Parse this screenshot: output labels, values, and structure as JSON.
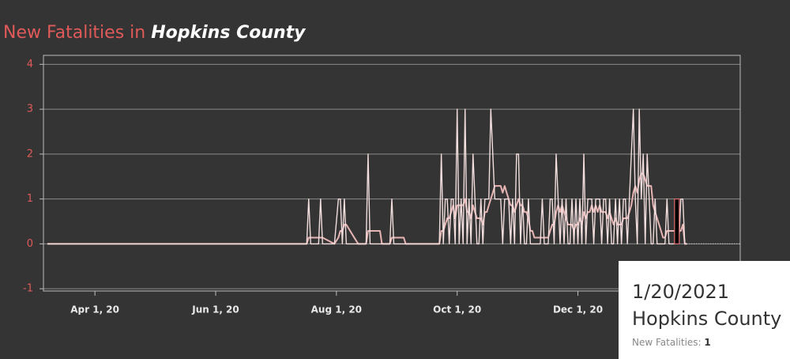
{
  "chart_data": {
    "type": "line",
    "title_parts": [
      "New Fatalities in ",
      "Hopkins County"
    ],
    "x": [
      "2020-03-08",
      "2020-07-17",
      "2020-07-18",
      "2020-07-19",
      "2020-07-23",
      "2020-07-24",
      "2020-07-25",
      "2020-07-31",
      "2020-08-02",
      "2020-08-03",
      "2020-08-04",
      "2020-08-05",
      "2020-08-06",
      "2020-08-10",
      "2020-08-12",
      "2020-08-16",
      "2020-08-17",
      "2020-08-18",
      "2020-08-23",
      "2020-08-24",
      "2020-08-28",
      "2020-08-29",
      "2020-08-30",
      "2020-09-04",
      "2020-09-05",
      "2020-09-22",
      "2020-09-23",
      "2020-09-24",
      "2020-09-25",
      "2020-09-26",
      "2020-09-27",
      "2020-09-28",
      "2020-09-29",
      "2020-09-30",
      "2020-10-01",
      "2020-10-02",
      "2020-10-03",
      "2020-10-04",
      "2020-10-05",
      "2020-10-06",
      "2020-10-07",
      "2020-10-08",
      "2020-10-09",
      "2020-10-10",
      "2020-10-11",
      "2020-10-12",
      "2020-10-13",
      "2020-10-14",
      "2020-10-15",
      "2020-10-16",
      "2020-10-17",
      "2020-10-18",
      "2020-10-19",
      "2020-10-20",
      "2020-10-21",
      "2020-10-22",
      "2020-10-23",
      "2020-10-24",
      "2020-10-25",
      "2020-10-26",
      "2020-10-27",
      "2020-10-28",
      "2020-10-29",
      "2020-10-30",
      "2020-10-31",
      "2020-11-01",
      "2020-11-02",
      "2020-11-03",
      "2020-11-04",
      "2020-11-05",
      "2020-11-06",
      "2020-11-07",
      "2020-11-08",
      "2020-11-09",
      "2020-11-10",
      "2020-11-11",
      "2020-11-12",
      "2020-11-13",
      "2020-11-14",
      "2020-11-15",
      "2020-11-16",
      "2020-11-17",
      "2020-11-18",
      "2020-11-19",
      "2020-11-20",
      "2020-11-21",
      "2020-11-22",
      "2020-11-23",
      "2020-11-24",
      "2020-11-25",
      "2020-11-26",
      "2020-11-27",
      "2020-11-28",
      "2020-11-29",
      "2020-11-30",
      "2020-12-01",
      "2020-12-02",
      "2020-12-03",
      "2020-12-04",
      "2020-12-05",
      "2020-12-06",
      "2020-12-07",
      "2020-12-08",
      "2020-12-09",
      "2020-12-10",
      "2020-12-11",
      "2020-12-12",
      "2020-12-13",
      "2020-12-14",
      "2020-12-15",
      "2020-12-16",
      "2020-12-17",
      "2020-12-18",
      "2020-12-19",
      "2020-12-20",
      "2020-12-21",
      "2020-12-22",
      "2020-12-23",
      "2020-12-24",
      "2020-12-25",
      "2020-12-26",
      "2020-12-27",
      "2020-12-28",
      "2020-12-29",
      "2020-12-30",
      "2020-12-31",
      "2021-01-01",
      "2021-01-02",
      "2021-01-03",
      "2021-01-04",
      "2021-01-05",
      "2021-01-06",
      "2021-01-07",
      "2021-01-08",
      "2021-01-09",
      "2021-01-10",
      "2021-01-11",
      "2021-01-12",
      "2021-01-13",
      "2021-01-14",
      "2021-01-15",
      "2021-01-16",
      "2021-01-17",
      "2021-01-18",
      "2021-01-19",
      "2021-01-20",
      "2021-01-21",
      "2021-01-22",
      "2021-01-23",
      "2021-01-24",
      "2021-01-25"
    ],
    "series": [
      {
        "name": "New Fatalities",
        "color": "#f3dede",
        "values": [
          0,
          0,
          1,
          0,
          0,
          1,
          0,
          0,
          1,
          1,
          0,
          1,
          0,
          0,
          0,
          0,
          2,
          0,
          0,
          0,
          0,
          1,
          0,
          0,
          0,
          0,
          2,
          0,
          1,
          1,
          0,
          1,
          1,
          0,
          3,
          0,
          1,
          0,
          3,
          0,
          1,
          0,
          2,
          1,
          0,
          0,
          1,
          0,
          1,
          1,
          1,
          3,
          2,
          1,
          1,
          1,
          1,
          0,
          1,
          1,
          1,
          0,
          1,
          0,
          2,
          2,
          0,
          1,
          0,
          0,
          1,
          0,
          0,
          0,
          0,
          0,
          0,
          1,
          0,
          0,
          0,
          1,
          1,
          0,
          2,
          1,
          0,
          1,
          0,
          1,
          0,
          0,
          1,
          0,
          1,
          0,
          1,
          0,
          2,
          0,
          1,
          1,
          1,
          0,
          1,
          1,
          1,
          0,
          1,
          1,
          0,
          1,
          0,
          0,
          1,
          0,
          1,
          0,
          1,
          1,
          0,
          1,
          2,
          3,
          1,
          0,
          3,
          1,
          2,
          0,
          2,
          1,
          0,
          0,
          1,
          0,
          0,
          0,
          0,
          0,
          1,
          0,
          0,
          0,
          0,
          1,
          0,
          1,
          1,
          0,
          0
        ]
      },
      {
        "color": "#e7b4b4",
        "values": [
          0,
          0,
          0.14,
          0.14,
          0.14,
          0.14,
          0.14,
          0,
          0.14,
          0.29,
          0.29,
          0.43,
          0.43,
          0.14,
          0,
          0,
          0.29,
          0.29,
          0.29,
          0,
          0,
          0.14,
          0.14,
          0.14,
          0,
          0,
          0.29,
          0.29,
          0.43,
          0.57,
          0.57,
          0.71,
          0.86,
          0.57,
          0.86,
          0.86,
          0.86,
          0.86,
          1,
          0.71,
          0.71,
          0.57,
          0.86,
          0.71,
          0.57,
          0.57,
          0.57,
          0.43,
          0.71,
          0.71,
          0.86,
          1,
          1.14,
          1.29,
          1.29,
          1.29,
          1.29,
          1.14,
          1.29,
          1.14,
          1,
          0.86,
          0.86,
          0.71,
          0.86,
          1,
          0.86,
          0.86,
          0.71,
          0.71,
          0.57,
          0.29,
          0.29,
          0.14,
          0.14,
          0.14,
          0.14,
          0.14,
          0.14,
          0.14,
          0.14,
          0.29,
          0.43,
          0.43,
          0.71,
          0.86,
          0.71,
          0.86,
          0.71,
          0.57,
          0.43,
          0.43,
          0.43,
          0.29,
          0.43,
          0.43,
          0.57,
          0.43,
          0.71,
          0.57,
          0.71,
          0.71,
          0.86,
          0.71,
          0.86,
          0.71,
          0.86,
          0.71,
          0.71,
          0.71,
          0.57,
          0.71,
          0.57,
          0.43,
          0.57,
          0.43,
          0.43,
          0.43,
          0.57,
          0.57,
          0.57,
          0.71,
          0.86,
          1.14,
          1.29,
          1.14,
          1.43,
          1.57,
          1.57,
          1.43,
          1.29,
          1.29,
          1.29,
          0.86,
          0.71,
          0.57,
          0.43,
          0.29,
          0.14,
          0.14,
          0.29,
          0.29,
          0.29,
          0.29,
          0.29,
          0.29,
          0.29,
          0.29,
          0.43,
          0,
          0
        ]
      }
    ],
    "xlim": [
      "2020-03-06",
      "2021-02-21"
    ],
    "xticks": [
      {
        "value": "2020-04-01",
        "label": "Apr 1, 20"
      },
      {
        "value": "2020-06-01",
        "label": "Jun 1, 20"
      },
      {
        "value": "2020-08-01",
        "label": "Aug 1, 20"
      },
      {
        "value": "2020-10-01",
        "label": "Oct 1, 20"
      },
      {
        "value": "2020-12-01",
        "label": "Dec 1, 20"
      }
    ],
    "ylim": [
      -1.05,
      4.2
    ],
    "yticks": [
      -1,
      0,
      1,
      2,
      3,
      4
    ],
    "grid": true,
    "highlight_x": "2021-01-20",
    "tooltip": {
      "date": "1/20/2021",
      "county": "Hopkins County",
      "label": "New Fatalities:",
      "value": 1
    }
  }
}
